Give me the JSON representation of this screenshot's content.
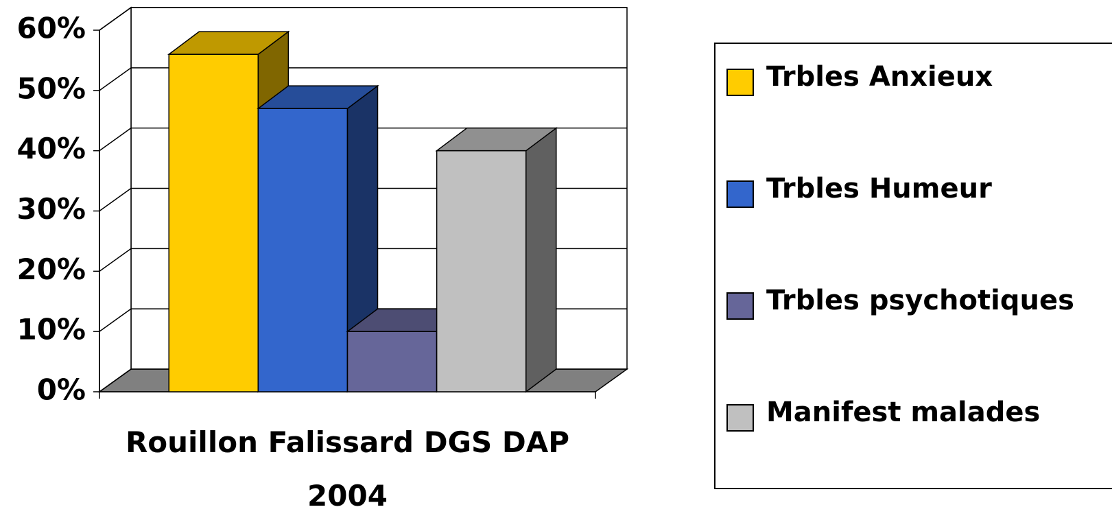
{
  "chart_data": {
    "type": "bar3d",
    "categories": [
      "Rouillon Falissard DGS DAP 2004"
    ],
    "series": [
      {
        "name": "Trbles Anxieux",
        "color": "#ffcc00",
        "values": [
          56
        ]
      },
      {
        "name": "Trbles Humeur",
        "color": "#3366cc",
        "values": [
          47
        ]
      },
      {
        "name": "Trbles psychotiques",
        "color": "#666699",
        "values": [
          10
        ]
      },
      {
        "name": "Manifest malades",
        "color": "#c0c0c0",
        "values": [
          40
        ]
      }
    ],
    "ylim": [
      0,
      60
    ],
    "yticks": [
      {
        "value": 0,
        "label": "0%"
      },
      {
        "value": 10,
        "label": "10%"
      },
      {
        "value": 20,
        "label": "20%"
      },
      {
        "value": 30,
        "label": "30%"
      },
      {
        "value": 40,
        "label": "40%"
      },
      {
        "value": 50,
        "label": "50%"
      },
      {
        "value": 60,
        "label": "60%"
      }
    ],
    "grid": true,
    "legend": "right"
  }
}
